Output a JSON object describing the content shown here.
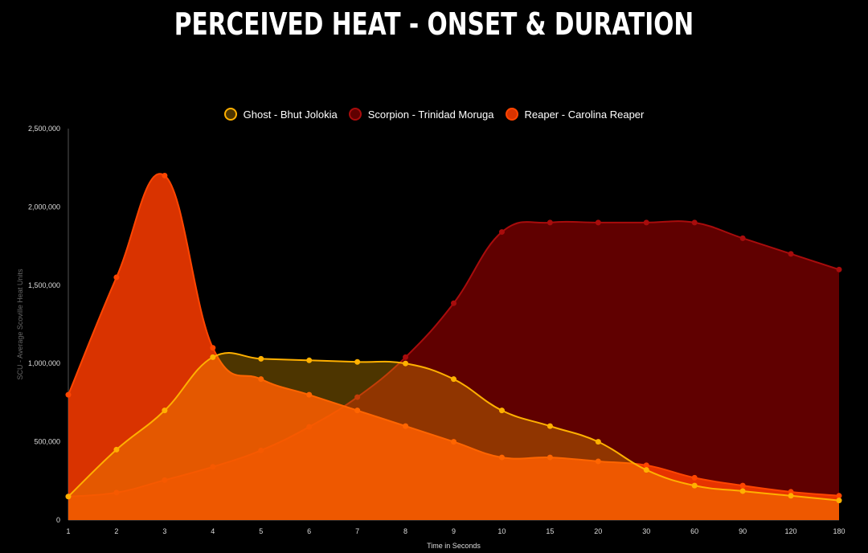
{
  "chart_data": {
    "type": "area",
    "title": "Perceived Heat - Onset & Duration",
    "xlabel": "Time in Seconds",
    "ylabel": "SCU - Average Scoville Heat Units",
    "ylim": [
      0,
      2500000
    ],
    "yticks": [
      "0",
      "500,000",
      "1,000,000",
      "1,500,000",
      "2,000,000",
      "2,500,000"
    ],
    "categories": [
      "1",
      "2",
      "3",
      "4",
      "5",
      "6",
      "7",
      "8",
      "9",
      "10",
      "15",
      "20",
      "30",
      "60",
      "90",
      "120",
      "180"
    ],
    "legend_position": "top",
    "grid": false,
    "series": [
      {
        "name": "Ghost - Bhut Jolokia",
        "color": "#ffb000",
        "fill": "rgba(255,176,0,0.3)",
        "values": [
          150000,
          450000,
          700000,
          1040000,
          1030000,
          1020000,
          1010000,
          1000000,
          900000,
          700000,
          600000,
          500000,
          320000,
          220000,
          185000,
          155000,
          125000
        ]
      },
      {
        "name": "Scorpion - Trinidad Moruga",
        "color": "#a80c0c",
        "fill": "rgba(120,0,0,0.8)",
        "values": [
          150000,
          175000,
          255000,
          340000,
          445000,
          595000,
          785000,
          1040000,
          1385000,
          1840000,
          1900000,
          1900000,
          1900000,
          1900000,
          1800000,
          1700000,
          1600000
        ]
      },
      {
        "name": "Reaper - Carolina Reaper",
        "color": "#ff4500",
        "fill": "rgba(255,60,0,0.85)",
        "values": [
          800000,
          1550000,
          2200000,
          1100000,
          900000,
          800000,
          700000,
          600000,
          500000,
          400000,
          400000,
          375000,
          350000,
          270000,
          220000,
          180000,
          155000
        ]
      }
    ]
  }
}
